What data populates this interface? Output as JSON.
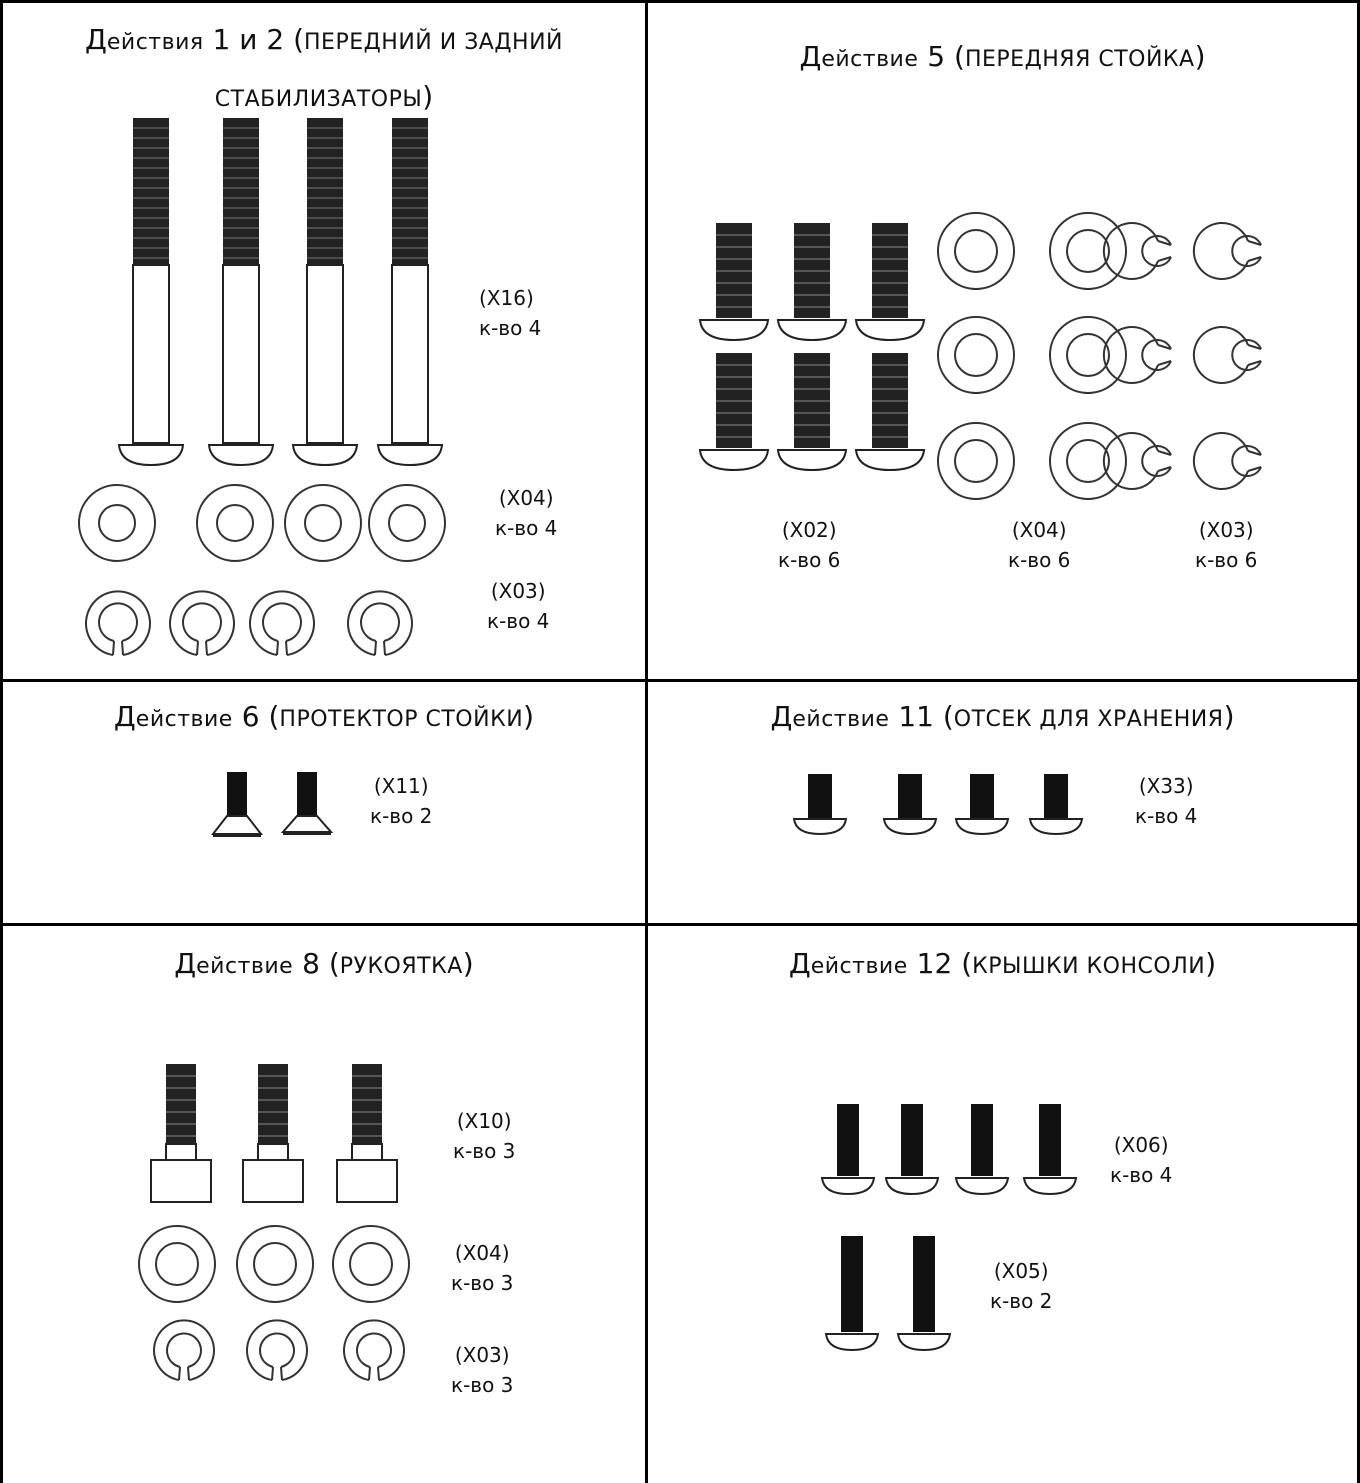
{
  "panels": [
    {
      "id": "steps-1-2",
      "title_cap": "Д",
      "title_rest": "ействия",
      "title_num": "1 и 2",
      "title_paren_open": "(",
      "title_desc": "передний и задний стабилизаторы",
      "title_paren_close": ")",
      "parts": [
        {
          "code": "(X16)",
          "qty": "к-во 4"
        },
        {
          "code": "(X04)",
          "qty": "к-во 4"
        },
        {
          "code": "(X03)",
          "qty": "к-во 4"
        }
      ]
    },
    {
      "id": "step-5",
      "title_cap": "Д",
      "title_rest": "ействие",
      "title_num": "5",
      "title_paren_open": "(",
      "title_desc": "передняя стойка",
      "title_paren_close": ")",
      "parts": [
        {
          "code": "(X02)",
          "qty": "к-во 6"
        },
        {
          "code": "(X04)",
          "qty": "к-во 6"
        },
        {
          "code": "(X03)",
          "qty": "к-во 6"
        }
      ]
    },
    {
      "id": "step-6",
      "title_cap": "Д",
      "title_rest": "ействие",
      "title_num": "6",
      "title_paren_open": "(",
      "title_desc": "протектор стойки",
      "title_paren_close": ")",
      "parts": [
        {
          "code": "(X11)",
          "qty": "к-во 2"
        }
      ]
    },
    {
      "id": "step-11",
      "title_cap": "Д",
      "title_rest": "ействие",
      "title_num": "11",
      "title_paren_open": "(",
      "title_desc": "отсек для хранения",
      "title_paren_close": ")",
      "parts": [
        {
          "code": "(X33)",
          "qty": "к-во 4"
        }
      ]
    },
    {
      "id": "step-8",
      "title_cap": "Д",
      "title_rest": "ействие",
      "title_num": "8",
      "title_paren_open": "(",
      "title_desc": "рукоятка",
      "title_paren_close": ")",
      "parts": [
        {
          "code": "(X10)",
          "qty": "к-во 3"
        },
        {
          "code": "(X04)",
          "qty": "к-во 3"
        },
        {
          "code": "(X03)",
          "qty": "к-во 3"
        }
      ]
    },
    {
      "id": "step-12",
      "title_cap": "Д",
      "title_rest": "ействие",
      "title_num": "12",
      "title_paren_open": "(",
      "title_desc": "крышки консоли",
      "title_paren_close": ")",
      "parts": [
        {
          "code": "(X06)",
          "qty": "к-во 4"
        },
        {
          "code": "(X05)",
          "qty": "к-во 2"
        }
      ]
    }
  ]
}
